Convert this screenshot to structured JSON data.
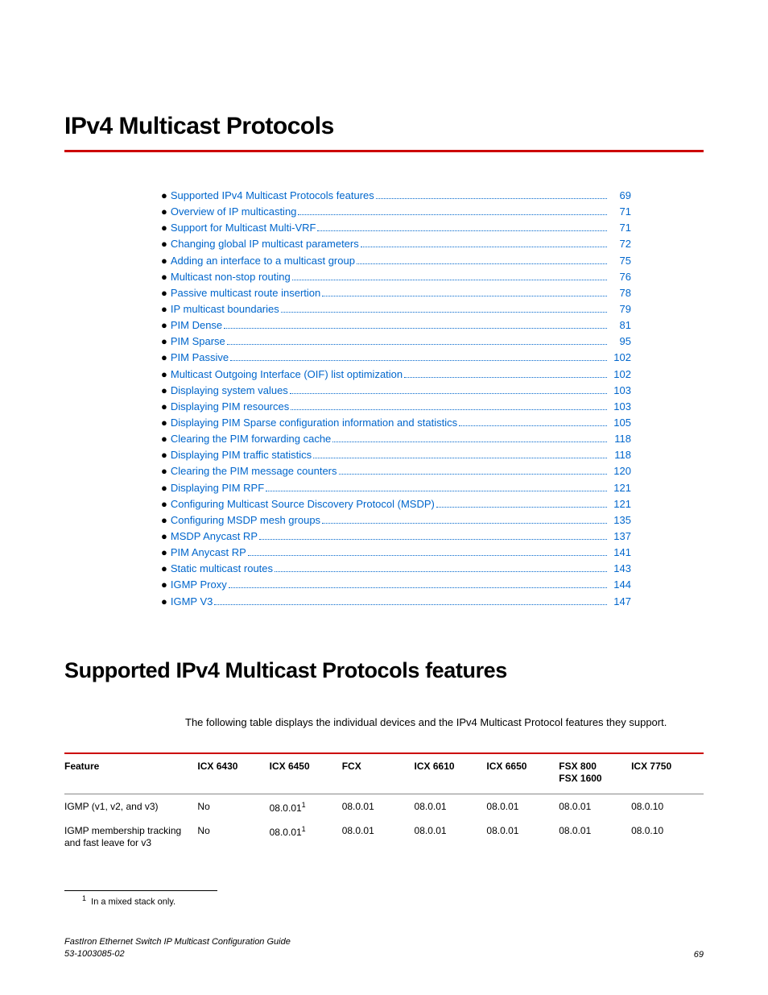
{
  "colors": {
    "accent": "#cc0000",
    "link": "#0066cc",
    "text": "#000000",
    "grid": "#888888",
    "bg": "#ffffff"
  },
  "chapter_title": "IPv4 Multicast Protocols",
  "toc": [
    {
      "label": "Supported IPv4 Multicast Protocols features",
      "page": "69"
    },
    {
      "label": "Overview of IP multicasting",
      "page": "71"
    },
    {
      "label": "Support for Multicast Multi-VRF",
      "page": "71"
    },
    {
      "label": "Changing global IP multicast parameters",
      "page": "72"
    },
    {
      "label": "Adding an interface to a multicast group",
      "page": "75"
    },
    {
      "label": "Multicast non-stop routing",
      "page": "76"
    },
    {
      "label": "Passive multicast route insertion ",
      "page": "78"
    },
    {
      "label": "IP multicast boundaries",
      "page": "79"
    },
    {
      "label": "PIM Dense ",
      "page": "81"
    },
    {
      "label": "PIM Sparse ",
      "page": "95"
    },
    {
      "label": "PIM Passive",
      "page": "102"
    },
    {
      "label": "Multicast Outgoing Interface (OIF) list optimization",
      "page": "102"
    },
    {
      "label": "Displaying system values",
      "page": "103"
    },
    {
      "label": "Displaying PIM resources",
      "page": "103"
    },
    {
      "label": "Displaying PIM Sparse configuration information and statistics",
      "page": "105"
    },
    {
      "label": "Clearing the PIM forwarding cache",
      "page": "118"
    },
    {
      "label": "Displaying PIM traffic statistics",
      "page": "118"
    },
    {
      "label": "Clearing the PIM message counters",
      "page": "120"
    },
    {
      "label": "Displaying PIM RPF",
      "page": "121"
    },
    {
      "label": "Configuring Multicast Source Discovery Protocol (MSDP)",
      "page": "121"
    },
    {
      "label": "Configuring MSDP mesh groups ",
      "page": "135"
    },
    {
      "label": "MSDP Anycast RP",
      "page": "137"
    },
    {
      "label": "PIM Anycast RP",
      "page": "141"
    },
    {
      "label": "Static multicast routes",
      "page": "143"
    },
    {
      "label": "IGMP Proxy",
      "page": "144"
    },
    {
      "label": "IGMP V3",
      "page": "147"
    }
  ],
  "section_heading": "Supported IPv4 Multicast Protocols features",
  "intro_text": "The following table displays the individual devices and the IPv4 Multicast Protocol features they support.",
  "table": {
    "columns": [
      "Feature",
      "ICX 6430",
      "ICX 6450",
      "FCX",
      "ICX 6610",
      "ICX 6650",
      "FSX 800\nFSX 1600",
      "ICX 7750"
    ],
    "rows": [
      [
        "IGMP (v1, v2, and v3)",
        "No",
        "08.0.01¹",
        "08.0.01",
        "08.0.01",
        "08.0.01",
        "08.0.01",
        "08.0.10"
      ],
      [
        "IGMP membership tracking and fast leave for v3",
        "No",
        "08.0.01¹",
        "08.0.01",
        "08.0.01",
        "08.0.01",
        "08.0.01",
        "08.0.10"
      ]
    ]
  },
  "footnote": {
    "num": "1",
    "text": "In a mixed stack only."
  },
  "footer": {
    "left_line1": "FastIron Ethernet Switch IP Multicast Configuration Guide",
    "left_line2": "53-1003085-02",
    "page_num": "69"
  }
}
